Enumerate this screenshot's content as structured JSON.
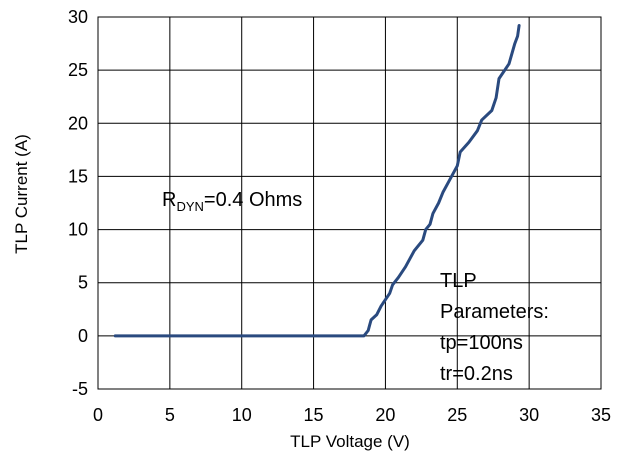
{
  "chart_data": {
    "type": "line",
    "title": "",
    "xlabel": "TLP Voltage (V)",
    "ylabel": "TLP Current (A)",
    "xlim": [
      0,
      35
    ],
    "ylim": [
      -5,
      30
    ],
    "xticks": [
      0,
      5,
      10,
      15,
      20,
      25,
      30,
      35
    ],
    "yticks": [
      -5,
      0,
      5,
      10,
      15,
      20,
      25,
      30
    ],
    "xtick_labels": [
      "0",
      "5",
      "10",
      "15",
      "20",
      "25",
      "30",
      "35"
    ],
    "ytick_labels": [
      "-5",
      "0",
      "5",
      "10",
      "15",
      "20",
      "25",
      "30"
    ],
    "grid": true,
    "legend": "none",
    "series": [
      {
        "color": "#2a4a7f",
        "x": [
          1.2,
          18.5,
          18.8,
          18.9,
          19.0,
          19.4,
          19.7,
          20.3,
          20.5,
          20.9,
          21.4,
          22.0,
          22.6,
          22.8,
          23.1,
          23.3,
          23.7,
          24.0,
          24.4,
          25.0,
          25.2,
          25.8,
          26.4,
          26.7,
          27.4,
          27.7,
          27.9,
          28.6,
          29.0,
          29.2,
          29.3
        ],
        "y": [
          0,
          0,
          0.5,
          1.0,
          1.5,
          2.0,
          2.8,
          4.0,
          4.8,
          5.5,
          6.5,
          8.0,
          9.0,
          10.0,
          10.5,
          11.5,
          12.5,
          13.5,
          14.5,
          16.0,
          17.3,
          18.2,
          19.3,
          20.3,
          21.2,
          22.4,
          24.2,
          25.6,
          27.5,
          28.2,
          29.2
        ]
      }
    ],
    "annotations": {
      "rdyn_main": "R",
      "rdyn_sub": "DYN",
      "rdyn_rest": "=0.4  Ohms",
      "params_line1": "TLP",
      "params_line2": "Parameters:",
      "params_line3": "tp=100ns",
      "params_line4": "tr=0.2ns"
    }
  }
}
